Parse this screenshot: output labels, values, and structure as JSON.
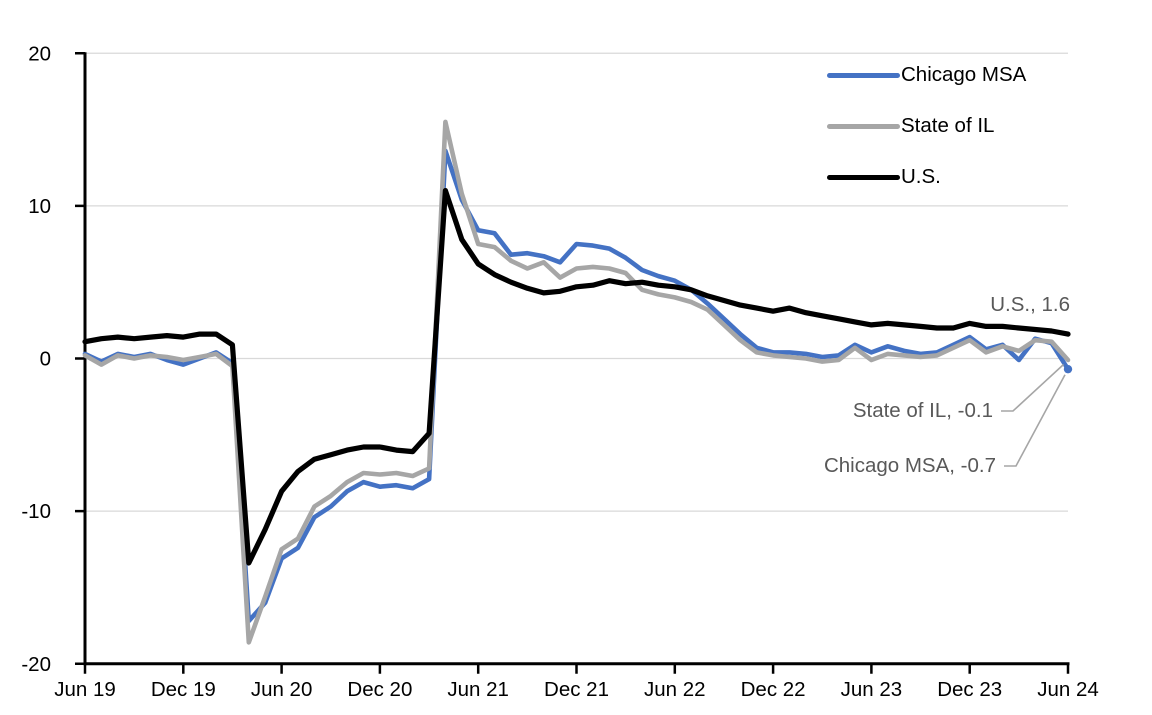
{
  "chart_data": {
    "type": "line",
    "title": "",
    "x_axis": {
      "unit": "monthly",
      "points_per_tick": 6,
      "tick_labels": [
        "Jun 19",
        "Dec 19",
        "Jun 20",
        "Dec 20",
        "Jun 21",
        "Dec 21",
        "Jun 22",
        "Dec 22",
        "Jun 23",
        "Dec 23",
        "Jun 24"
      ]
    },
    "y_axis": {
      "min": -20,
      "max": 20,
      "ticks": [
        20,
        10,
        0,
        -10,
        -20
      ]
    },
    "grid": {
      "horizontal": true,
      "color": "#D9D9D9"
    },
    "axis_color": "#000000",
    "legend": {
      "position": "top-right"
    },
    "series": [
      {
        "name": "Chicago MSA",
        "color": "#4472C4",
        "end_marker": true,
        "values": [
          0.3,
          -0.2,
          0.3,
          0.1,
          0.3,
          -0.1,
          -0.4,
          0.0,
          0.4,
          -0.3,
          -17.2,
          -16.0,
          -13.1,
          -12.4,
          -10.4,
          -9.7,
          -8.7,
          -8.1,
          -8.4,
          -8.3,
          -8.5,
          -7.9,
          13.6,
          10.4,
          8.4,
          8.2,
          6.8,
          6.9,
          6.7,
          6.3,
          7.5,
          7.4,
          7.2,
          6.6,
          5.8,
          5.4,
          5.1,
          4.5,
          3.6,
          2.6,
          1.6,
          0.7,
          0.4,
          0.4,
          0.3,
          0.1,
          0.2,
          0.9,
          0.4,
          0.8,
          0.5,
          0.3,
          0.4,
          0.9,
          1.4,
          0.6,
          0.9,
          -0.1,
          1.3,
          1.0,
          -0.7
        ]
      },
      {
        "name": "State of IL",
        "color": "#A6A6A6",
        "end_marker": false,
        "values": [
          0.2,
          -0.4,
          0.2,
          0.0,
          0.2,
          0.1,
          -0.1,
          0.1,
          0.3,
          -0.5,
          -18.6,
          -15.6,
          -12.5,
          -11.8,
          -9.7,
          -9.0,
          -8.1,
          -7.5,
          -7.6,
          -7.5,
          -7.7,
          -7.2,
          15.5,
          10.8,
          7.5,
          7.3,
          6.4,
          5.9,
          6.3,
          5.3,
          5.9,
          6.0,
          5.9,
          5.6,
          4.5,
          4.2,
          4.0,
          3.7,
          3.2,
          2.2,
          1.2,
          0.4,
          0.2,
          0.1,
          0.0,
          -0.2,
          -0.1,
          0.7,
          -0.1,
          0.3,
          0.2,
          0.1,
          0.2,
          0.7,
          1.2,
          0.4,
          0.8,
          0.5,
          1.2,
          1.1,
          -0.1
        ]
      },
      {
        "name": "U.S.",
        "color": "#000000",
        "end_marker": false,
        "values": [
          1.1,
          1.3,
          1.4,
          1.3,
          1.4,
          1.5,
          1.4,
          1.6,
          1.6,
          0.9,
          -13.4,
          -11.2,
          -8.7,
          -7.4,
          -6.6,
          -6.3,
          -6.0,
          -5.8,
          -5.8,
          -6.0,
          -6.1,
          -4.9,
          11.0,
          7.8,
          6.2,
          5.5,
          5.0,
          4.6,
          4.3,
          4.4,
          4.7,
          4.8,
          5.1,
          4.9,
          5.0,
          4.8,
          4.7,
          4.5,
          4.1,
          3.8,
          3.5,
          3.3,
          3.1,
          3.3,
          3.0,
          2.8,
          2.6,
          2.4,
          2.2,
          2.3,
          2.2,
          2.1,
          2.0,
          2.0,
          2.3,
          2.1,
          2.1,
          2.0,
          1.9,
          1.8,
          1.6
        ]
      }
    ],
    "annotations": [
      {
        "series": "U.S.",
        "value": 1.6,
        "text": "U.S., 1.6",
        "leader": false
      },
      {
        "series": "State of IL",
        "value": -0.1,
        "text": "State of IL, -0.1",
        "leader": true
      },
      {
        "series": "Chicago MSA",
        "value": -0.7,
        "text": "Chicago MSA, -0.7",
        "leader": true
      }
    ],
    "leader_color": "#A6A6A6"
  }
}
